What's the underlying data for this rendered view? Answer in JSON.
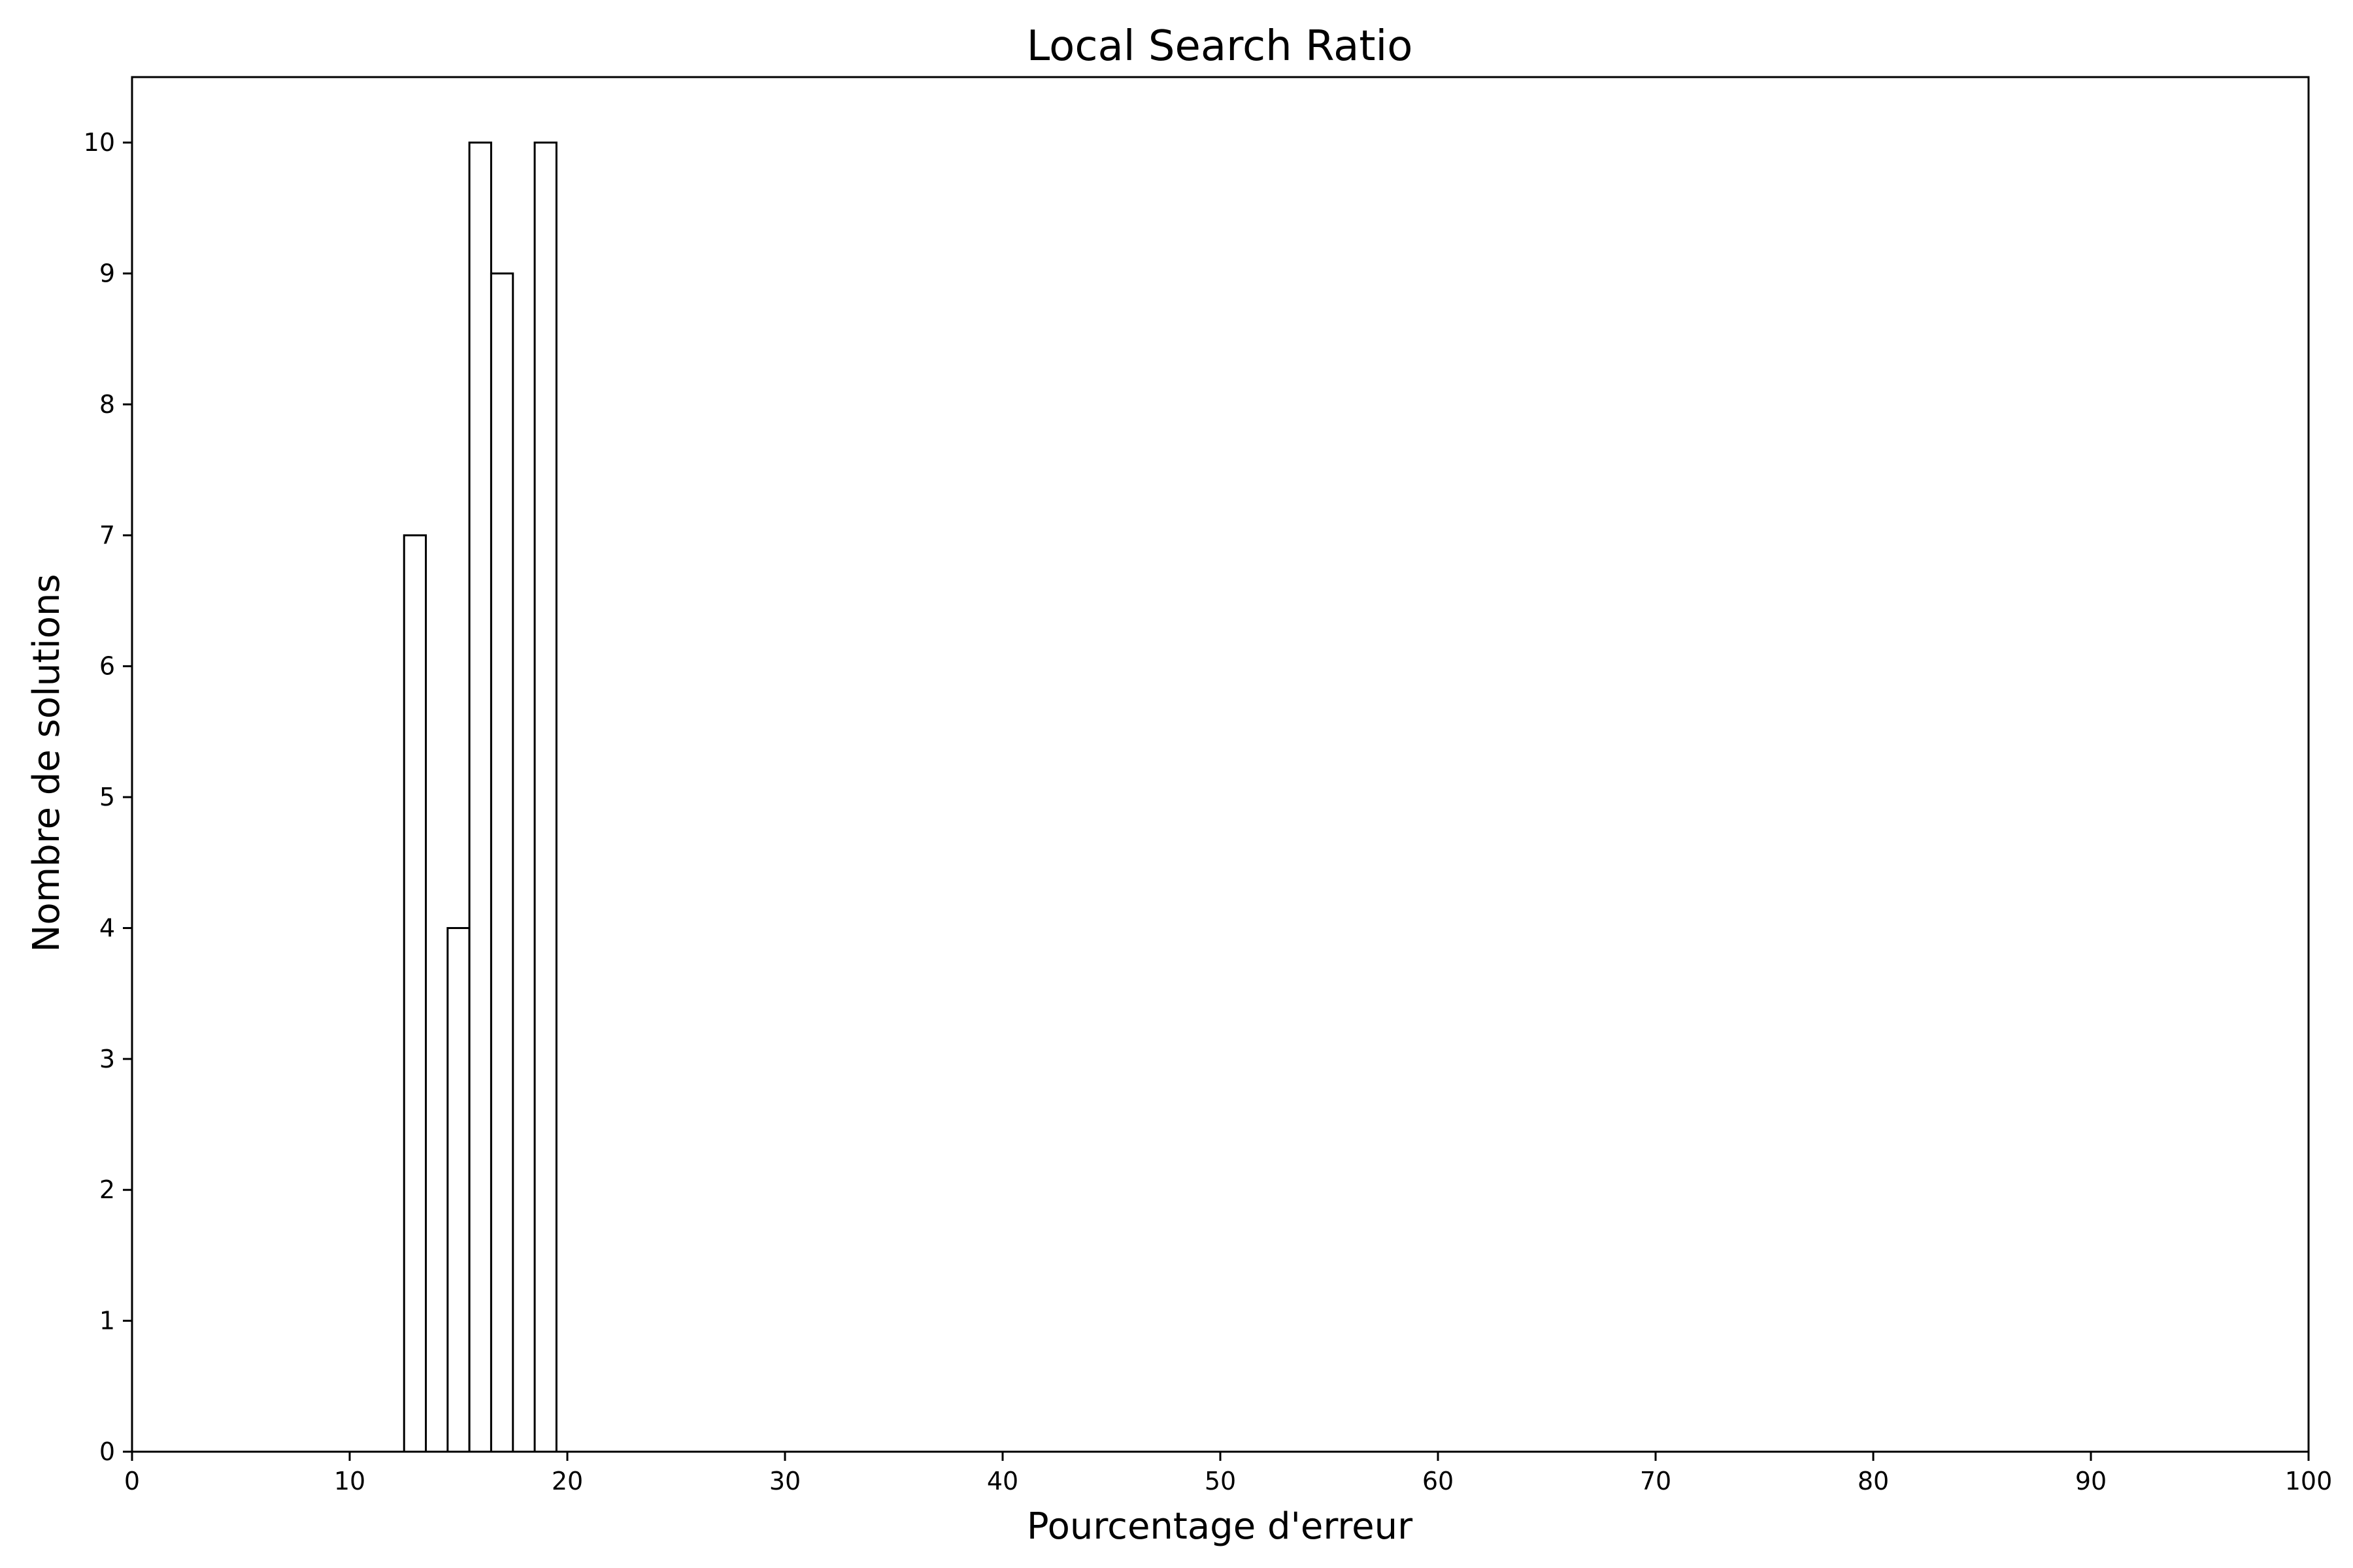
{
  "chart_data": {
    "type": "bar",
    "title": "Local Search Ratio",
    "xlabel": "Pourcentage d'erreur",
    "ylabel": "Nombre de solutions",
    "xlim": [
      0,
      100
    ],
    "ylim": [
      0,
      10.5
    ],
    "xticks": [
      0,
      10,
      20,
      30,
      40,
      50,
      60,
      70,
      80,
      90,
      100
    ],
    "yticks": [
      0,
      1,
      2,
      3,
      4,
      5,
      6,
      7,
      8,
      9,
      10
    ],
    "grid": false,
    "bars": [
      {
        "x0": 12.5,
        "x1": 13.5,
        "value": 7
      },
      {
        "x0": 14.5,
        "x1": 15.5,
        "value": 4
      },
      {
        "x0": 15.5,
        "x1": 16.5,
        "value": 10
      },
      {
        "x0": 16.5,
        "x1": 17.5,
        "value": 9
      },
      {
        "x0": 18.5,
        "x1": 19.5,
        "value": 10
      }
    ],
    "bar_fill": "#ffffff",
    "bar_edge": "#000000"
  }
}
